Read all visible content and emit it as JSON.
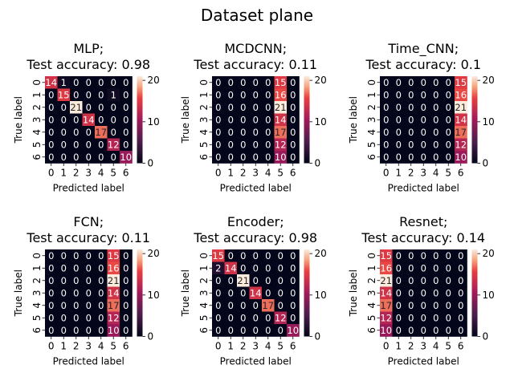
{
  "figure": {
    "title": "Dataset plane"
  },
  "chart_data": [
    {
      "type": "heatmap",
      "title_line1": "MLP;",
      "title_line2": "Test accuracy: 0.98",
      "xlabel": "Predicted label",
      "ylabel": "True label",
      "x_ticks": [
        "0",
        "1",
        "2",
        "3",
        "4",
        "5",
        "6"
      ],
      "y_ticks": [
        "0",
        "1",
        "2",
        "3",
        "4",
        "5",
        "6"
      ],
      "colorbar_ticks": [
        0,
        10,
        20
      ],
      "vmin": 0,
      "vmax": 21,
      "matrix": [
        [
          14,
          1,
          0,
          0,
          0,
          0,
          0
        ],
        [
          0,
          15,
          0,
          0,
          0,
          1,
          0
        ],
        [
          0,
          0,
          21,
          0,
          0,
          0,
          0
        ],
        [
          0,
          0,
          0,
          14,
          0,
          0,
          0
        ],
        [
          0,
          0,
          0,
          0,
          17,
          0,
          0
        ],
        [
          0,
          0,
          0,
          0,
          0,
          12,
          0
        ],
        [
          0,
          0,
          0,
          0,
          0,
          0,
          10
        ]
      ]
    },
    {
      "type": "heatmap",
      "title_line1": "MCDCNN;",
      "title_line2": "Test accuracy: 0.11",
      "xlabel": "Predicted label",
      "ylabel": "True label",
      "x_ticks": [
        "0",
        "1",
        "2",
        "3",
        "4",
        "5",
        "6"
      ],
      "y_ticks": [
        "0",
        "1",
        "2",
        "3",
        "4",
        "5",
        "6"
      ],
      "colorbar_ticks": [
        0,
        10,
        20
      ],
      "vmin": 0,
      "vmax": 21,
      "matrix": [
        [
          0,
          0,
          0,
          0,
          0,
          15,
          0
        ],
        [
          0,
          0,
          0,
          0,
          0,
          16,
          0
        ],
        [
          0,
          0,
          0,
          0,
          0,
          21,
          0
        ],
        [
          0,
          0,
          0,
          0,
          0,
          14,
          0
        ],
        [
          0,
          0,
          0,
          0,
          0,
          17,
          0
        ],
        [
          0,
          0,
          0,
          0,
          0,
          12,
          0
        ],
        [
          0,
          0,
          0,
          0,
          0,
          10,
          0
        ]
      ]
    },
    {
      "type": "heatmap",
      "title_line1": "Time_CNN;",
      "title_line2": "Test accuracy: 0.1",
      "xlabel": "Predicted label",
      "ylabel": "True label",
      "x_ticks": [
        "0",
        "1",
        "2",
        "3",
        "4",
        "5",
        "6"
      ],
      "y_ticks": [
        "0",
        "1",
        "2",
        "3",
        "4",
        "5",
        "6"
      ],
      "colorbar_ticks": [
        0,
        10,
        20
      ],
      "vmin": 0,
      "vmax": 21,
      "matrix": [
        [
          0,
          0,
          0,
          0,
          0,
          0,
          15
        ],
        [
          0,
          0,
          0,
          0,
          0,
          0,
          16
        ],
        [
          0,
          0,
          0,
          0,
          0,
          0,
          21
        ],
        [
          0,
          0,
          0,
          0,
          0,
          0,
          14
        ],
        [
          0,
          0,
          0,
          0,
          0,
          0,
          17
        ],
        [
          0,
          0,
          0,
          0,
          0,
          0,
          12
        ],
        [
          0,
          0,
          0,
          0,
          0,
          0,
          10
        ]
      ]
    },
    {
      "type": "heatmap",
      "title_line1": "FCN;",
      "title_line2": "Test accuracy: 0.11",
      "xlabel": "Predicted label",
      "ylabel": "True label",
      "x_ticks": [
        "0",
        "1",
        "2",
        "3",
        "4",
        "5",
        "6"
      ],
      "y_ticks": [
        "0",
        "1",
        "2",
        "3",
        "4",
        "5",
        "6"
      ],
      "colorbar_ticks": [
        0,
        10,
        20
      ],
      "vmin": 0,
      "vmax": 21,
      "matrix": [
        [
          0,
          0,
          0,
          0,
          0,
          15,
          0
        ],
        [
          0,
          0,
          0,
          0,
          0,
          16,
          0
        ],
        [
          0,
          0,
          0,
          0,
          0,
          21,
          0
        ],
        [
          0,
          0,
          0,
          0,
          0,
          14,
          0
        ],
        [
          0,
          0,
          0,
          0,
          0,
          17,
          0
        ],
        [
          0,
          0,
          0,
          0,
          0,
          12,
          0
        ],
        [
          0,
          0,
          0,
          0,
          0,
          10,
          0
        ]
      ]
    },
    {
      "type": "heatmap",
      "title_line1": "Encoder;",
      "title_line2": "Test accuracy: 0.98",
      "xlabel": "Predicted label",
      "ylabel": "True label",
      "x_ticks": [
        "0",
        "1",
        "2",
        "3",
        "4",
        "5",
        "6"
      ],
      "y_ticks": [
        "0",
        "1",
        "2",
        "3",
        "4",
        "5",
        "6"
      ],
      "colorbar_ticks": [
        0,
        10,
        20
      ],
      "vmin": 0,
      "vmax": 21,
      "matrix": [
        [
          15,
          0,
          0,
          0,
          0,
          0,
          0
        ],
        [
          2,
          14,
          0,
          0,
          0,
          0,
          0
        ],
        [
          0,
          0,
          21,
          0,
          0,
          0,
          0
        ],
        [
          0,
          0,
          0,
          14,
          0,
          0,
          0
        ],
        [
          0,
          0,
          0,
          0,
          17,
          0,
          0
        ],
        [
          0,
          0,
          0,
          0,
          0,
          12,
          0
        ],
        [
          0,
          0,
          0,
          0,
          0,
          0,
          10
        ]
      ]
    },
    {
      "type": "heatmap",
      "title_line1": "Resnet;",
      "title_line2": "Test accuracy: 0.14",
      "xlabel": "Predicted label",
      "ylabel": "True label",
      "x_ticks": [
        "0",
        "1",
        "2",
        "3",
        "4",
        "5",
        "6"
      ],
      "y_ticks": [
        "0",
        "1",
        "2",
        "3",
        "4",
        "5",
        "6"
      ],
      "colorbar_ticks": [
        0,
        10,
        20
      ],
      "vmin": 0,
      "vmax": 21,
      "matrix": [
        [
          15,
          0,
          0,
          0,
          0,
          0,
          0
        ],
        [
          16,
          0,
          0,
          0,
          0,
          0,
          0
        ],
        [
          21,
          0,
          0,
          0,
          0,
          0,
          0
        ],
        [
          14,
          0,
          0,
          0,
          0,
          0,
          0
        ],
        [
          17,
          0,
          0,
          0,
          0,
          0,
          0
        ],
        [
          12,
          0,
          0,
          0,
          0,
          0,
          0
        ],
        [
          10,
          0,
          0,
          0,
          0,
          0,
          0
        ]
      ]
    }
  ]
}
